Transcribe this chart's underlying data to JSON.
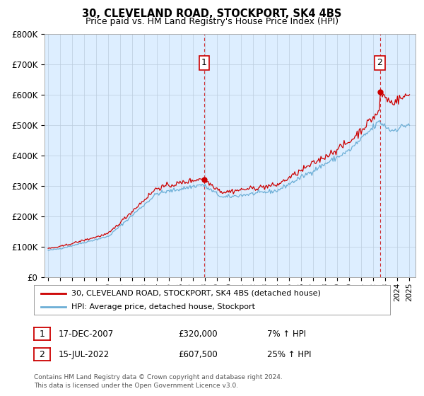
{
  "title": "30, CLEVELAND ROAD, STOCKPORT, SK4 4BS",
  "subtitle": "Price paid vs. HM Land Registry's House Price Index (HPI)",
  "ylabel_ticks": [
    "£0",
    "£100K",
    "£200K",
    "£300K",
    "£400K",
    "£500K",
    "£600K",
    "£700K",
    "£800K"
  ],
  "ytick_values": [
    0,
    100000,
    200000,
    300000,
    400000,
    500000,
    600000,
    700000,
    800000
  ],
  "ylim": [
    0,
    800000
  ],
  "xlim_start": 1994.7,
  "xlim_end": 2025.5,
  "hpi_color": "#6baed6",
  "price_color": "#cc0000",
  "plot_bg_color": "#ddeeff",
  "sale1_date": 2007.96,
  "sale1_price": 320000,
  "sale1_label": "1",
  "sale2_date": 2022.54,
  "sale2_price": 607500,
  "sale2_label": "2",
  "legend_line1": "30, CLEVELAND ROAD, STOCKPORT, SK4 4BS (detached house)",
  "legend_line2": "HPI: Average price, detached house, Stockport",
  "table_row1": [
    "1",
    "17-DEC-2007",
    "£320,000",
    "7% ↑ HPI"
  ],
  "table_row2": [
    "2",
    "15-JUL-2022",
    "£607,500",
    "25% ↑ HPI"
  ],
  "footer": "Contains HM Land Registry data © Crown copyright and database right 2024.\nThis data is licensed under the Open Government Licence v3.0.",
  "background_color": "#ffffff",
  "grid_color": "#bbccdd"
}
